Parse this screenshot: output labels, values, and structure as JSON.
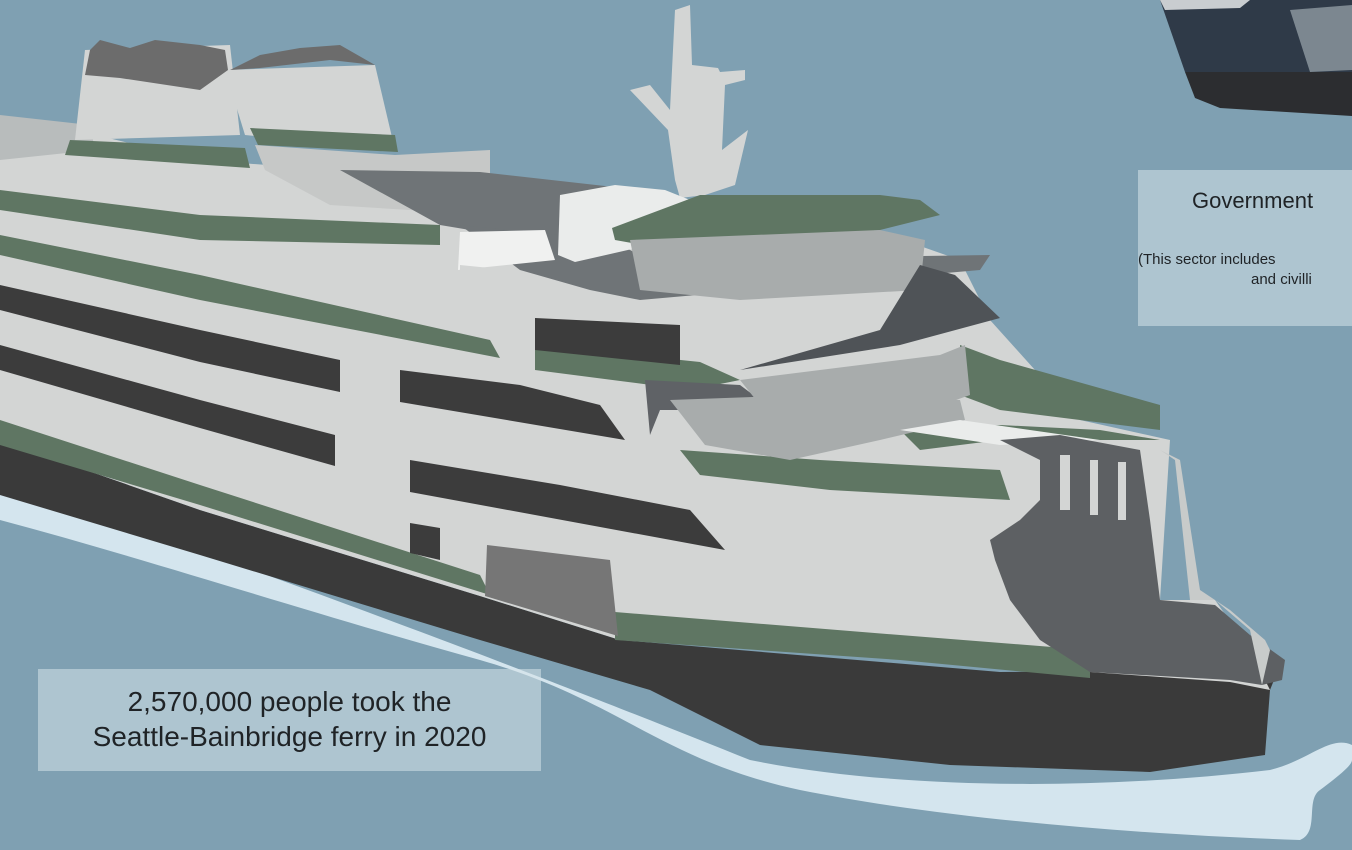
{
  "ferry_caption": {
    "line1": "2,570,000 people took the",
    "line2": "Seattle-Bainbridge ferry in 2020"
  },
  "gov_caption": {
    "title": "Government",
    "note_line1": "(This sector includes",
    "note_line2": "and civilli"
  },
  "colors": {
    "water": "#7fa0b2",
    "wake": "#d4e5ee",
    "hull": "#3a3a3a",
    "superstructure": "#d3d5d4",
    "stripe": "#5f7663",
    "window": "#3c3c3c",
    "deck": "#6f7477",
    "bow": "#5d6063"
  }
}
